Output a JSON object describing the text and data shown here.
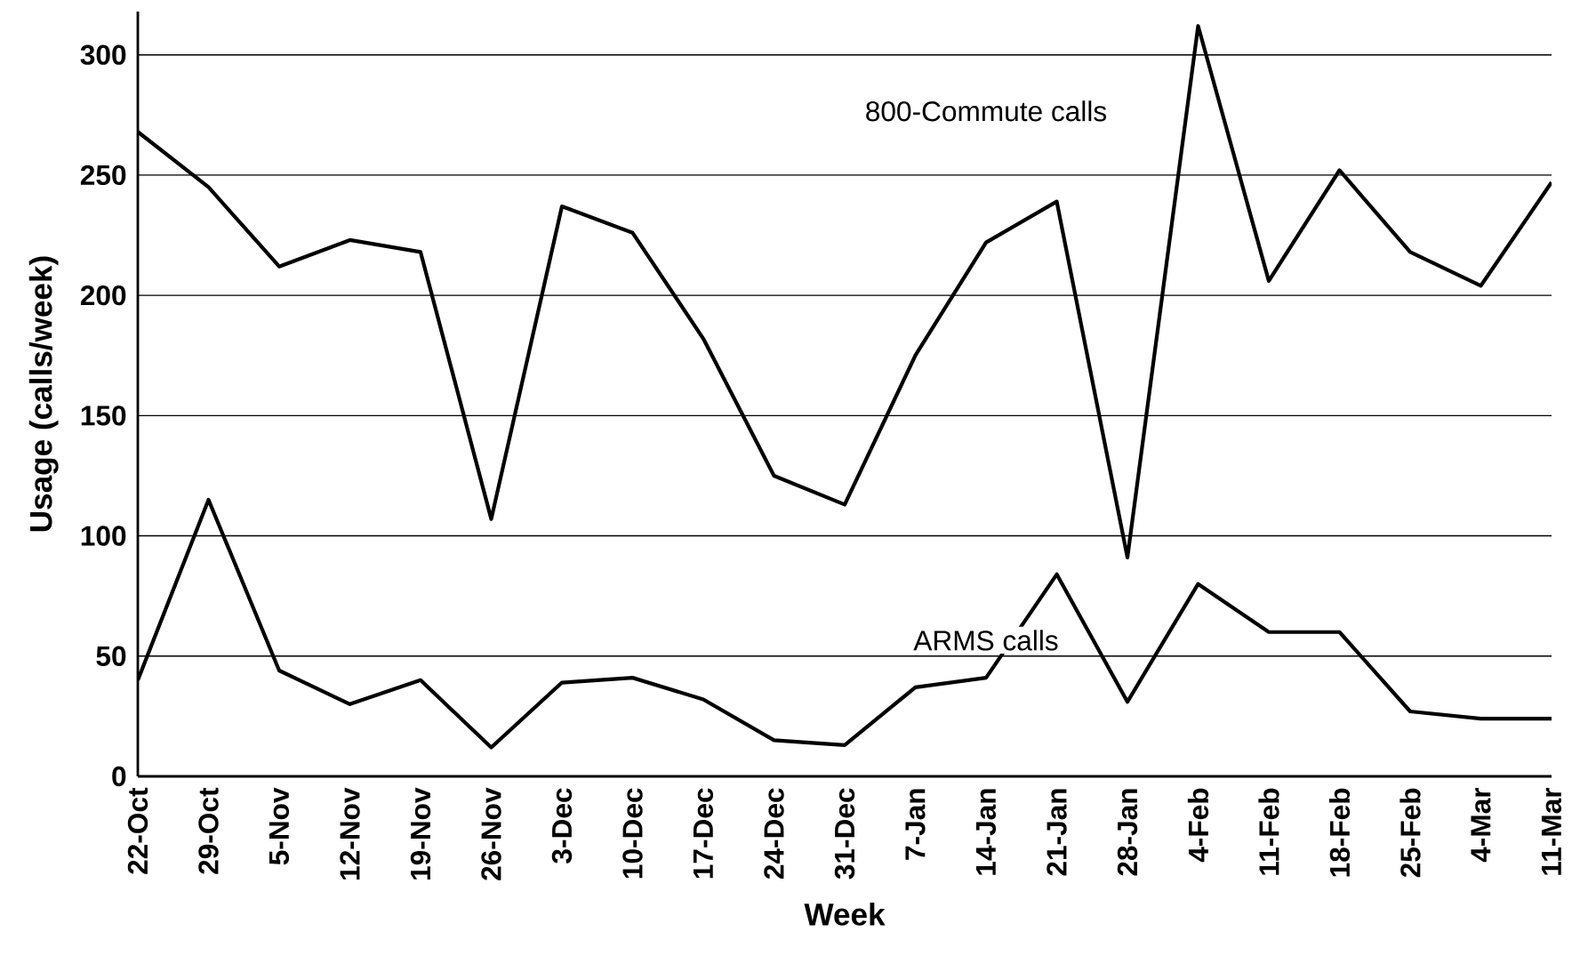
{
  "chart_data": {
    "type": "line",
    "xlabel": "Week",
    "ylabel": "Usage (calls/week)",
    "categories": [
      "22-Oct",
      "29-Oct",
      "5-Nov",
      "12-Nov",
      "19-Nov",
      "26-Nov",
      "3-Dec",
      "10-Dec",
      "17-Dec",
      "24-Dec",
      "31-Dec",
      "7-Jan",
      "14-Jan",
      "21-Jan",
      "28-Jan",
      "4-Feb",
      "11-Feb",
      "18-Feb",
      "25-Feb",
      "4-Mar",
      "11-Mar"
    ],
    "series": [
      {
        "name": "800-Commute calls",
        "color": "#000000",
        "values": [
          268,
          245,
          212,
          223,
          218,
          107,
          237,
          226,
          182,
          125,
          113,
          175,
          222,
          239,
          91,
          312,
          206,
          252,
          218,
          204,
          247
        ]
      },
      {
        "name": "ARMS calls",
        "color": "#000000",
        "values": [
          40,
          115,
          44,
          30,
          40,
          12,
          39,
          41,
          32,
          15,
          13,
          37,
          41,
          84,
          31,
          80,
          60,
          60,
          27,
          24,
          24
        ]
      }
    ],
    "ylim": [
      0,
      318
    ],
    "yticks": [
      0,
      50,
      100,
      150,
      200,
      250,
      300
    ],
    "grid": "y",
    "legend": false,
    "marker": "none",
    "line_style": "solid"
  }
}
